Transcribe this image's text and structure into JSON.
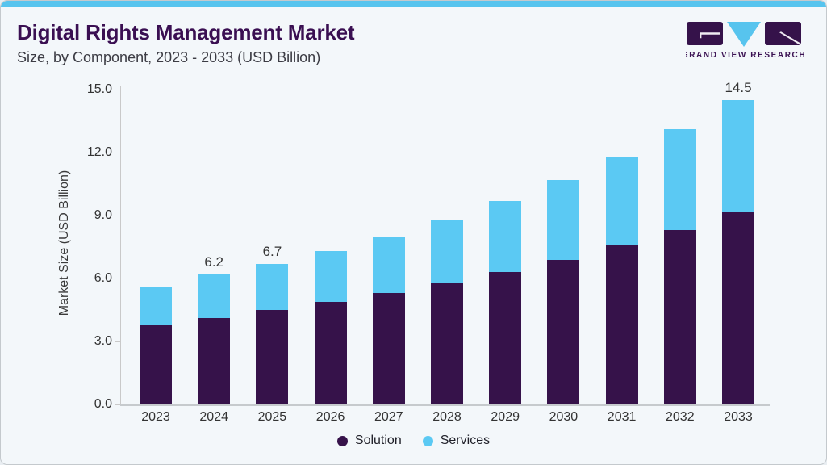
{
  "page": {
    "background_color": "#f3f7fa",
    "accent_strip_color": "#57c4ee",
    "border_color": "#c4c9cd"
  },
  "header": {
    "title": "Digital Rights Management Market",
    "subtitle": "Size, by Component, 2023 - 2033 (USD Billion)",
    "title_color": "#3a0f52"
  },
  "logo": {
    "text": "GRAND VIEW RESEARCH",
    "dark_color": "#35124a",
    "blue_color": "#57c4ee"
  },
  "chart_data": {
    "type": "bar",
    "stacked": true,
    "categories": [
      "2023",
      "2024",
      "2025",
      "2026",
      "2027",
      "2028",
      "2029",
      "2030",
      "2031",
      "2032",
      "2033"
    ],
    "series": [
      {
        "name": "Solution",
        "color": "#36124a",
        "values": [
          3.8,
          4.1,
          4.5,
          4.9,
          5.3,
          5.8,
          6.3,
          6.9,
          7.6,
          8.3,
          9.2
        ]
      },
      {
        "name": "Services",
        "color": "#5bc9f3",
        "values": [
          1.8,
          2.1,
          2.2,
          2.4,
          2.7,
          3.0,
          3.4,
          3.8,
          4.2,
          4.8,
          5.3
        ]
      }
    ],
    "totals": [
      5.6,
      6.2,
      6.7,
      7.3,
      8.0,
      8.8,
      9.7,
      10.7,
      11.8,
      13.1,
      14.5
    ],
    "point_labels": [
      null,
      "6.2",
      "6.7",
      null,
      null,
      null,
      null,
      null,
      null,
      null,
      "14.5"
    ],
    "xlabel": "",
    "ylabel": "Market Size (USD Billion)",
    "ylim": [
      0,
      15
    ],
    "ytick_values": [
      0,
      3,
      6,
      9,
      12,
      15
    ],
    "ytick_labels": [
      "0.0",
      "3.0",
      "6.0",
      "9.0",
      "12.0",
      "15.0"
    ],
    "grid": false,
    "legend_position": "bottom"
  }
}
